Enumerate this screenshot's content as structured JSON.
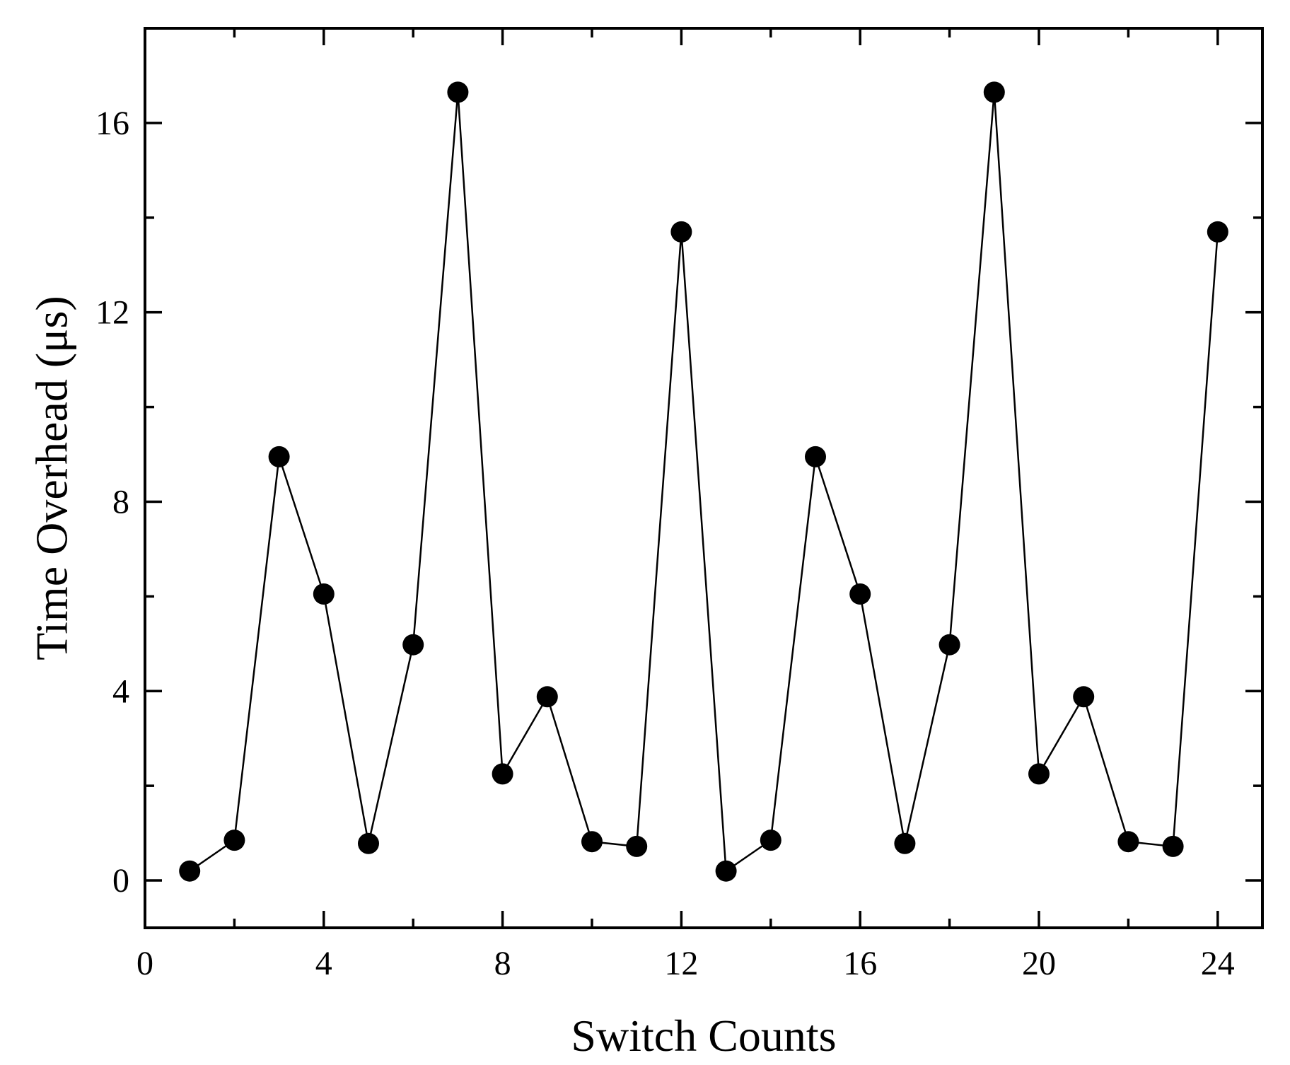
{
  "chart_data": {
    "type": "line",
    "title": "",
    "xlabel": "Switch Counts",
    "ylabel": "Time Overhead (μs)",
    "xlim": [
      0,
      25
    ],
    "ylim": [
      -1,
      18
    ],
    "x_ticks_major": [
      0,
      4,
      8,
      12,
      16,
      20,
      24
    ],
    "x_ticks_minor": [
      2,
      6,
      10,
      14,
      18,
      22
    ],
    "y_ticks_major": [
      0,
      4,
      8,
      12,
      16
    ],
    "y_ticks_minor": [
      2,
      6,
      10,
      14
    ],
    "grid": false,
    "legend": "none",
    "marker": "filled-circle",
    "colors": {
      "series": "#000000",
      "axes": "#000000",
      "background": "#ffffff"
    },
    "x_tick_labels": [
      "0",
      "4",
      "8",
      "12",
      "16",
      "20",
      "24"
    ],
    "y_tick_labels": [
      "0",
      "4",
      "8",
      "12",
      "16"
    ],
    "x": [
      1,
      2,
      3,
      4,
      5,
      6,
      7,
      8,
      9,
      10,
      11,
      12,
      13,
      14,
      15,
      16,
      17,
      18,
      19,
      20,
      21,
      22,
      23,
      24
    ],
    "y": [
      0.2,
      0.85,
      8.95,
      6.05,
      0.78,
      4.98,
      16.65,
      2.25,
      3.88,
      0.82,
      0.72,
      13.7,
      0.2,
      0.85,
      8.95,
      6.05,
      0.78,
      4.98,
      16.65,
      2.25,
      3.88,
      0.82,
      0.72,
      13.7
    ]
  }
}
